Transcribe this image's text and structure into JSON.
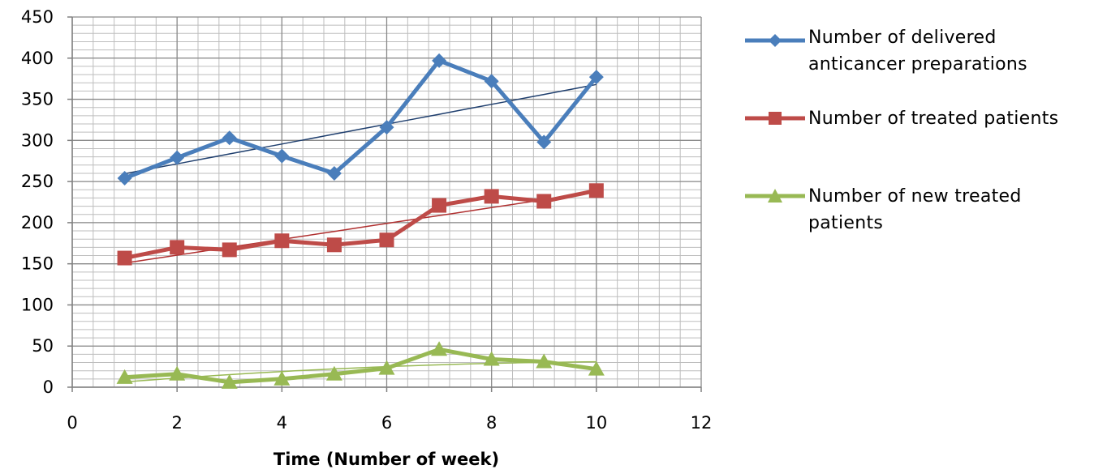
{
  "chart_data": {
    "type": "line",
    "title": "",
    "xlabel": "Time (Number of week)",
    "ylabel": "",
    "xlim": [
      0,
      12
    ],
    "ylim": [
      0,
      450
    ],
    "x_ticks": [
      0,
      2,
      4,
      6,
      8,
      10,
      12
    ],
    "y_ticks": [
      0,
      50,
      100,
      150,
      200,
      250,
      300,
      350,
      400,
      450
    ],
    "grid": true,
    "minor_grid": true,
    "legend_position": "right",
    "x": [
      1,
      2,
      3,
      4,
      5,
      6,
      7,
      8,
      9,
      10
    ],
    "series": [
      {
        "name": "Number of delivered anticancer preparations",
        "values": [
          254,
          279,
          303,
          281,
          260,
          316,
          397,
          372,
          298,
          377
        ],
        "color": "#4a7ebb",
        "marker": "diamond",
        "trendline": "linear"
      },
      {
        "name": "Number of treated patients",
        "values": [
          157,
          170,
          167,
          178,
          173,
          179,
          221,
          232,
          226,
          239
        ],
        "color": "#be4b48",
        "marker": "square",
        "trendline": "linear"
      },
      {
        "name": "Number of new treated patients",
        "values": [
          12,
          16,
          6,
          10,
          16,
          23,
          46,
          34,
          31,
          22
        ],
        "color": "#98b954",
        "marker": "triangle",
        "trendline": "polynomial"
      }
    ]
  }
}
